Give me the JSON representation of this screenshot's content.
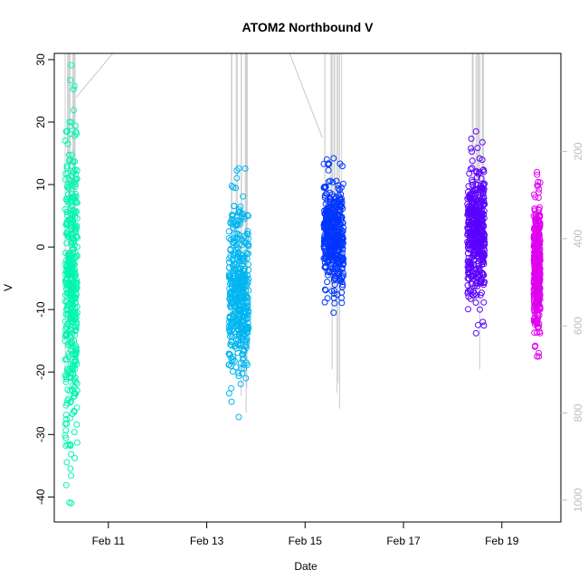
{
  "chart_data": {
    "type": "scatter",
    "title": "ATOM2 Northbound V",
    "xlabel": "Date",
    "ylabel": "V",
    "x_ticks": [
      "Feb 11",
      "Feb 13",
      "Feb 15",
      "Feb 17",
      "Feb 19"
    ],
    "x_tick_days": [
      11,
      13,
      15,
      17,
      19
    ],
    "xlim_days": [
      9.9,
      20.2
    ],
    "ylim": [
      -44,
      31
    ],
    "y_ticks": [
      -40,
      -30,
      -20,
      -10,
      0,
      10,
      20,
      30
    ],
    "right_axis": {
      "range": [
        -25,
        1050
      ],
      "ticks": [
        200,
        400,
        600,
        800,
        1000
      ],
      "reversed": true,
      "color": "#bebebe"
    },
    "grid": false,
    "legend": "none",
    "series": [
      {
        "color": "#00f5b0",
        "x_range_days": [
          10.12,
          10.37
        ],
        "v_range": [
          -41,
          29.1
        ],
        "depth_profile": [
          [
            10.17,
            230
          ],
          [
            10.22,
            700
          ],
          [
            10.28,
            760
          ]
        ]
      },
      {
        "color": "#00b5f0",
        "x_range_days": [
          13.45,
          13.85
        ],
        "v_range": [
          -27.2,
          12.6
        ],
        "depth_profile": [
          [
            13.6,
            180
          ],
          [
            13.7,
            760
          ],
          [
            13.8,
            800
          ]
        ]
      },
      {
        "color": "#0035ff",
        "x_range_days": [
          15.38,
          15.78
        ],
        "v_range": [
          -10.5,
          14.2
        ],
        "depth_profile": [
          [
            15.4,
            310
          ],
          [
            15.55,
            700
          ],
          [
            15.7,
            790
          ]
        ]
      },
      {
        "color": "#5a00ff",
        "x_range_days": [
          18.3,
          18.65
        ],
        "v_range": [
          -13.8,
          18.5
        ],
        "depth_profile": [
          [
            18.4,
            200
          ],
          [
            18.55,
            700
          ]
        ]
      },
      {
        "color": "#e000f0",
        "x_range_days": [
          19.65,
          19.78
        ],
        "v_range": [
          -17.5,
          12
        ]
      }
    ]
  }
}
